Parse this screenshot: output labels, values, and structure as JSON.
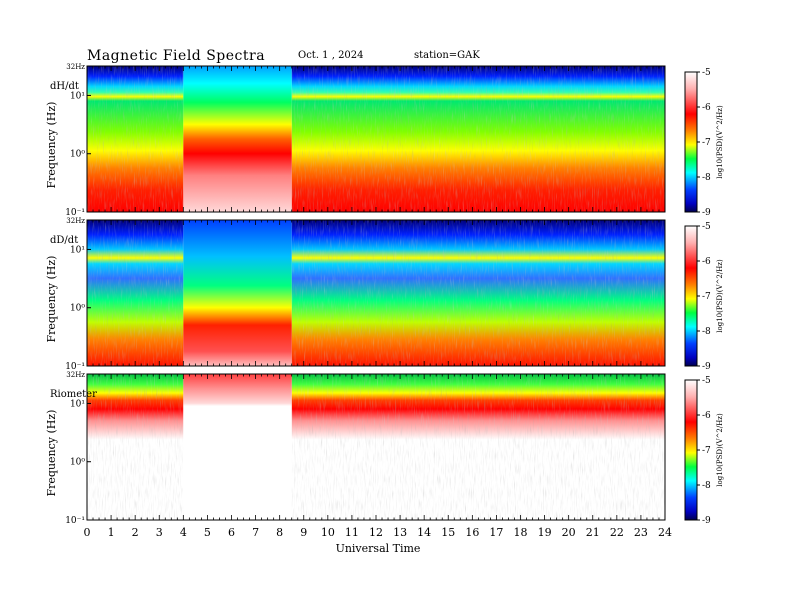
{
  "header": {
    "title": "Magnetic  Field  Spectra",
    "date": "Oct. 1  , 2024",
    "station": "station=GAK"
  },
  "chart_data": {
    "type": "heatmap",
    "xlabel": "Universal Time",
    "x_ticks": [
      "0",
      "1",
      "2",
      "3",
      "4",
      "5",
      "6",
      "7",
      "8",
      "9",
      "10",
      "11",
      "12",
      "13",
      "14",
      "15",
      "16",
      "17",
      "18",
      "19",
      "20",
      "21",
      "22",
      "23",
      "24"
    ],
    "xlim": [
      0,
      24
    ],
    "ylim_hz": [
      0.1,
      32
    ],
    "y_scale": "log",
    "colorbar": {
      "label": "log10(PSD)(V^2/Hz)",
      "ticks": [
        "-5",
        "-6",
        "-7",
        "-8",
        "-9"
      ],
      "range": [
        -9,
        -5
      ],
      "colors": [
        "#000060",
        "#0000ff",
        "#00c8ff",
        "#00ff80",
        "#ffff00",
        "#ff8000",
        "#ff0000",
        "#ffe0e0"
      ]
    },
    "panels": [
      {
        "name": "dH/dt",
        "ylabel": "Frequency  (Hz)",
        "y_ticks": [
          "32Hz",
          "10¹",
          "10⁰",
          "10⁻¹"
        ],
        "gap_interval_ut": [
          4.0,
          8.5
        ]
      },
      {
        "name": "dD/dt",
        "ylabel": "Frequency  (Hz)",
        "y_ticks": [
          "32Hz",
          "10¹",
          "10⁰",
          "10⁻¹"
        ],
        "gap_interval_ut": [
          4.0,
          8.5
        ]
      },
      {
        "name": "Riometer",
        "ylabel": "Frequency  (Hz)",
        "y_ticks": [
          "32Hz",
          "10¹",
          "10⁰",
          "10⁻¹"
        ],
        "gap_interval_ut": [
          4.0,
          8.5
        ]
      }
    ]
  }
}
